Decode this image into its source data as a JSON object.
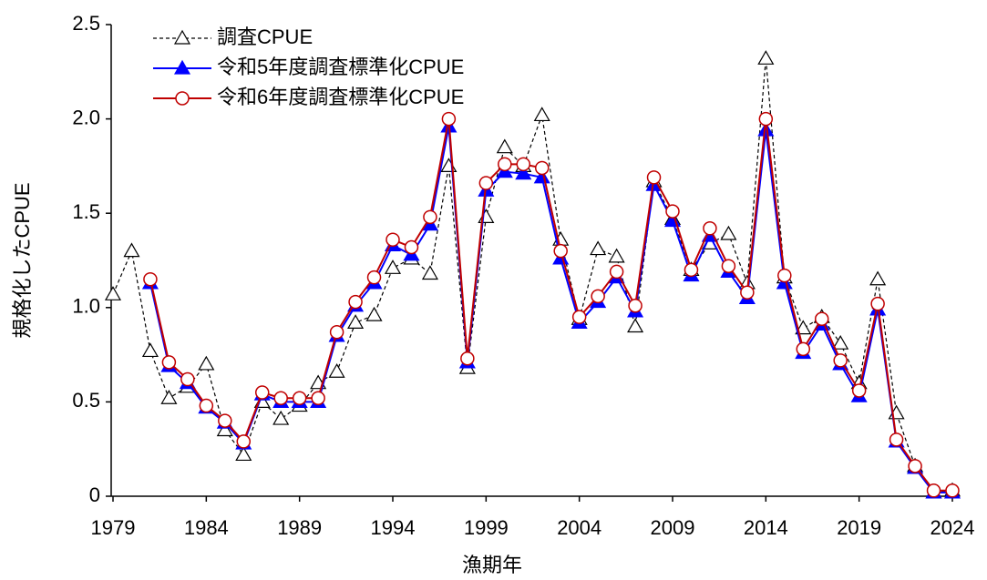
{
  "chart_data": {
    "type": "line",
    "x_label": "漁期年",
    "y_label": "規格化したCPUE",
    "x": [
      1979,
      1980,
      1981,
      1982,
      1983,
      1984,
      1985,
      1986,
      1987,
      1988,
      1989,
      1990,
      1991,
      1992,
      1993,
      1994,
      1995,
      1996,
      1997,
      1998,
      1999,
      2000,
      2001,
      2002,
      2003,
      2004,
      2005,
      2006,
      2007,
      2008,
      2009,
      2010,
      2011,
      2012,
      2013,
      2014,
      2015,
      2016,
      2017,
      2018,
      2019,
      2020,
      2021,
      2022,
      2023,
      2024
    ],
    "xlim": [
      1979,
      2024
    ],
    "xticks": [
      1979,
      1984,
      1989,
      1994,
      1999,
      2004,
      2009,
      2014,
      2019,
      2024
    ],
    "ylim": [
      0,
      2.5
    ],
    "yticks": [
      0,
      0.5,
      {
        "value": 1,
        "label": "1.0"
      },
      1.5,
      {
        "value": 2,
        "label": "2.0"
      },
      2.5
    ],
    "grid": false,
    "legend": "upper left",
    "series": [
      {
        "name": "調査CPUE",
        "color": "#000000",
        "marker": "open-triangle",
        "dashed": true,
        "values": [
          1.07,
          1.3,
          0.77,
          0.52,
          0.58,
          0.7,
          0.35,
          0.22,
          0.5,
          0.41,
          0.48,
          0.6,
          0.66,
          0.92,
          0.96,
          1.21,
          1.26,
          1.18,
          1.75,
          0.68,
          1.48,
          1.85,
          1.75,
          2.02,
          1.36,
          0.94,
          1.31,
          1.27,
          0.9,
          1.67,
          1.47,
          1.2,
          1.34,
          1.39,
          1.13,
          2.32,
          1.16,
          0.89,
          0.95,
          0.81,
          0.6,
          1.15,
          0.44,
          0.16,
          0.02,
          0.03
        ]
      },
      {
        "name": "令和5年度調査標準化CPUE",
        "color": "#0000ff",
        "marker": "filled-triangle",
        "dashed": false,
        "values": [
          null,
          null,
          1.13,
          0.69,
          0.6,
          0.47,
          0.39,
          0.28,
          0.54,
          0.5,
          0.5,
          0.5,
          0.85,
          1.01,
          1.13,
          1.33,
          1.28,
          1.44,
          1.96,
          0.71,
          1.62,
          1.72,
          1.71,
          1.69,
          1.26,
          0.92,
          1.03,
          1.16,
          0.98,
          1.65,
          1.46,
          1.17,
          1.38,
          1.19,
          1.05,
          1.94,
          1.13,
          0.76,
          0.91,
          0.7,
          0.53,
          0.99,
          0.29,
          0.15,
          0.02,
          0.02
        ]
      },
      {
        "name": "令和6年度調査標準化CPUE",
        "color": "#c00000",
        "marker": "open-circle",
        "dashed": false,
        "values": [
          null,
          null,
          1.15,
          0.71,
          0.62,
          0.48,
          0.4,
          0.29,
          0.55,
          0.52,
          0.52,
          0.52,
          0.87,
          1.03,
          1.16,
          1.36,
          1.32,
          1.48,
          2.0,
          0.73,
          1.66,
          1.76,
          1.76,
          1.74,
          1.3,
          0.95,
          1.06,
          1.19,
          1.01,
          1.69,
          1.51,
          1.2,
          1.42,
          1.22,
          1.08,
          2.0,
          1.17,
          0.78,
          0.94,
          0.72,
          0.56,
          1.02,
          0.3,
          0.16,
          0.03,
          0.03
        ]
      }
    ]
  }
}
